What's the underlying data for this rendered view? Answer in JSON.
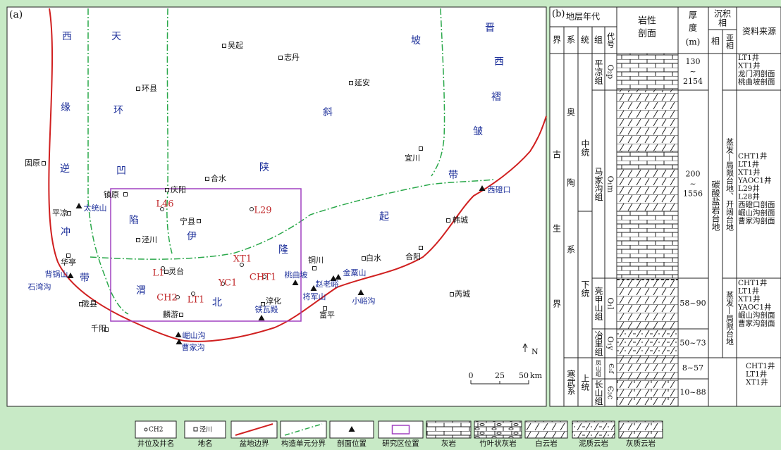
{
  "panel_a": {
    "label": "(a)",
    "tectonic_units": [
      [
        "西",
        "缘",
        "逆",
        "冲",
        "带"
      ],
      [
        "天",
        "环",
        "凹",
        "陷"
      ],
      [
        "伊",
        "陕",
        "斜",
        "坡"
      ],
      [
        "渭",
        "北",
        "隆",
        "起"
      ],
      [
        "晋",
        "西",
        "褶",
        "皱",
        "带"
      ]
    ],
    "places": [
      "吴起",
      "志丹",
      "环县",
      "延安",
      "宜川",
      "合水",
      "庆阳",
      "镇原",
      "宁县",
      "泾川",
      "平凉",
      "固原",
      "华亭",
      "陇县",
      "千阳",
      "灵台",
      "麟游",
      "淳化",
      "铜川",
      "白水",
      "合阳",
      "韩城",
      "芮城",
      "富平"
    ],
    "sections": [
      "太统山",
      "背锅山",
      "石湾沟",
      "崛山沟",
      "曹家沟",
      "铁瓦殿",
      "桃曲坡",
      "将军山",
      "赵老峪",
      "金粟山",
      "小峪沟",
      "西磴口"
    ],
    "wells": [
      "L46",
      "L29",
      "XT1",
      "L1",
      "CH2",
      "LT1",
      "YC1",
      "CHT1"
    ],
    "north": "N",
    "scale": {
      "ticks": [
        0,
        25,
        50
      ],
      "unit": "km"
    }
  },
  "panel_b": {
    "label": "(b)",
    "headers": {
      "age": "地层年代",
      "erathem": "界",
      "system": "系",
      "series": "统",
      "formation": "组",
      "code": "代号",
      "lithology": [
        "岩性",
        "剖面"
      ],
      "thickness": [
        "厚",
        "度",
        "(m)"
      ],
      "facies": [
        "沉积",
        "相"
      ],
      "facies_type": "相",
      "subfacies": "亚相",
      "source": "资料来源"
    },
    "erathem": [
      "古",
      "生",
      "界"
    ],
    "systems": [
      [
        "奥",
        "陶",
        "系"
      ],
      "寒武系"
    ],
    "series": [
      "中统",
      "下统",
      "上统"
    ],
    "rows": [
      {
        "formation": "平凉组",
        "code": "O₂p",
        "thickness": [
          "130",
          "~",
          "2154"
        ]
      },
      {
        "formation": "马家沟组",
        "code": "O₁m",
        "thickness": [
          "200",
          "~",
          "1556"
        ]
      },
      {
        "formation": "亮甲山组",
        "code": "O₁l",
        "thickness": [
          "58~90"
        ]
      },
      {
        "formation": "冶里组",
        "code": "O₁y",
        "thickness": [
          "50~73"
        ]
      },
      {
        "formation": "凤山组",
        "code": "Є₃f",
        "thickness": [
          "8~57"
        ]
      },
      {
        "formation": "长山组",
        "code": "Є₃c",
        "thickness": [
          "10~88"
        ]
      }
    ],
    "facies": "碳酸盐岩台地",
    "subfacies": [
      "蒸发—局限台地、开阔台地",
      "蒸发—局限台地"
    ],
    "sources": [
      [
        "LT1井",
        "XT1井",
        "龙门洞剖面",
        "桃曲坡剖面"
      ],
      [
        "CHT1井",
        "LT1井",
        "XT1井",
        "YAOC1井",
        "L29井",
        "L28井",
        "西磴口剖面",
        "崛山沟剖面",
        "曹家沟剖面"
      ],
      [
        "CHT1井",
        "LT1井",
        "XT1井",
        "YAOC1井",
        "崛山沟剖面",
        "曹家沟剖面"
      ],
      [
        "CHT1井",
        "LT1井",
        "XT1井"
      ]
    ]
  },
  "legend": [
    {
      "symbol": "CH2",
      "label": "井位及井名"
    },
    {
      "symbol": "泾川",
      "label": "地名"
    },
    {
      "label": "盆地边界"
    },
    {
      "label": "构造单元分界"
    },
    {
      "label": "剖面位置"
    },
    {
      "label": "研究区位置"
    },
    {
      "label": "灰岩"
    },
    {
      "label": "竹叶状灰岩"
    },
    {
      "label": "白云岩"
    },
    {
      "label": "泥质云岩"
    },
    {
      "label": "灰质云岩"
    }
  ]
}
